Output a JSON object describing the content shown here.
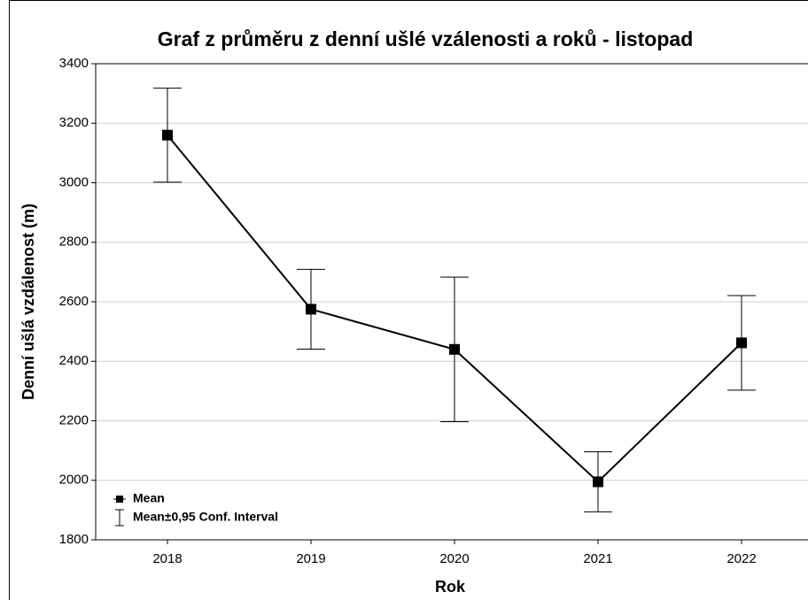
{
  "chart_data": {
    "type": "line_errorbar",
    "title": "Graf z průměru z denní ušlé vzálenosti a roků - listopad",
    "x_label": "Rok",
    "y_label": "Denní ušlá vzdálenost (m)",
    "categories": [
      "2018",
      "2019",
      "2020",
      "2021",
      "2022"
    ],
    "series": [
      {
        "name": "Mean",
        "color": "#000000",
        "values": [
          3160,
          2575,
          2440,
          1995,
          2462
        ],
        "errors": [
          158,
          134,
          243,
          101,
          159
        ],
        "error_name": "Mean±0,95 Conf. Interval"
      }
    ],
    "ylim": [
      1800,
      3400
    ],
    "yticks": [
      1800,
      2000,
      2200,
      2400,
      2600,
      2800,
      3000,
      3200,
      3400
    ],
    "grid": true,
    "legend": "lower left"
  }
}
